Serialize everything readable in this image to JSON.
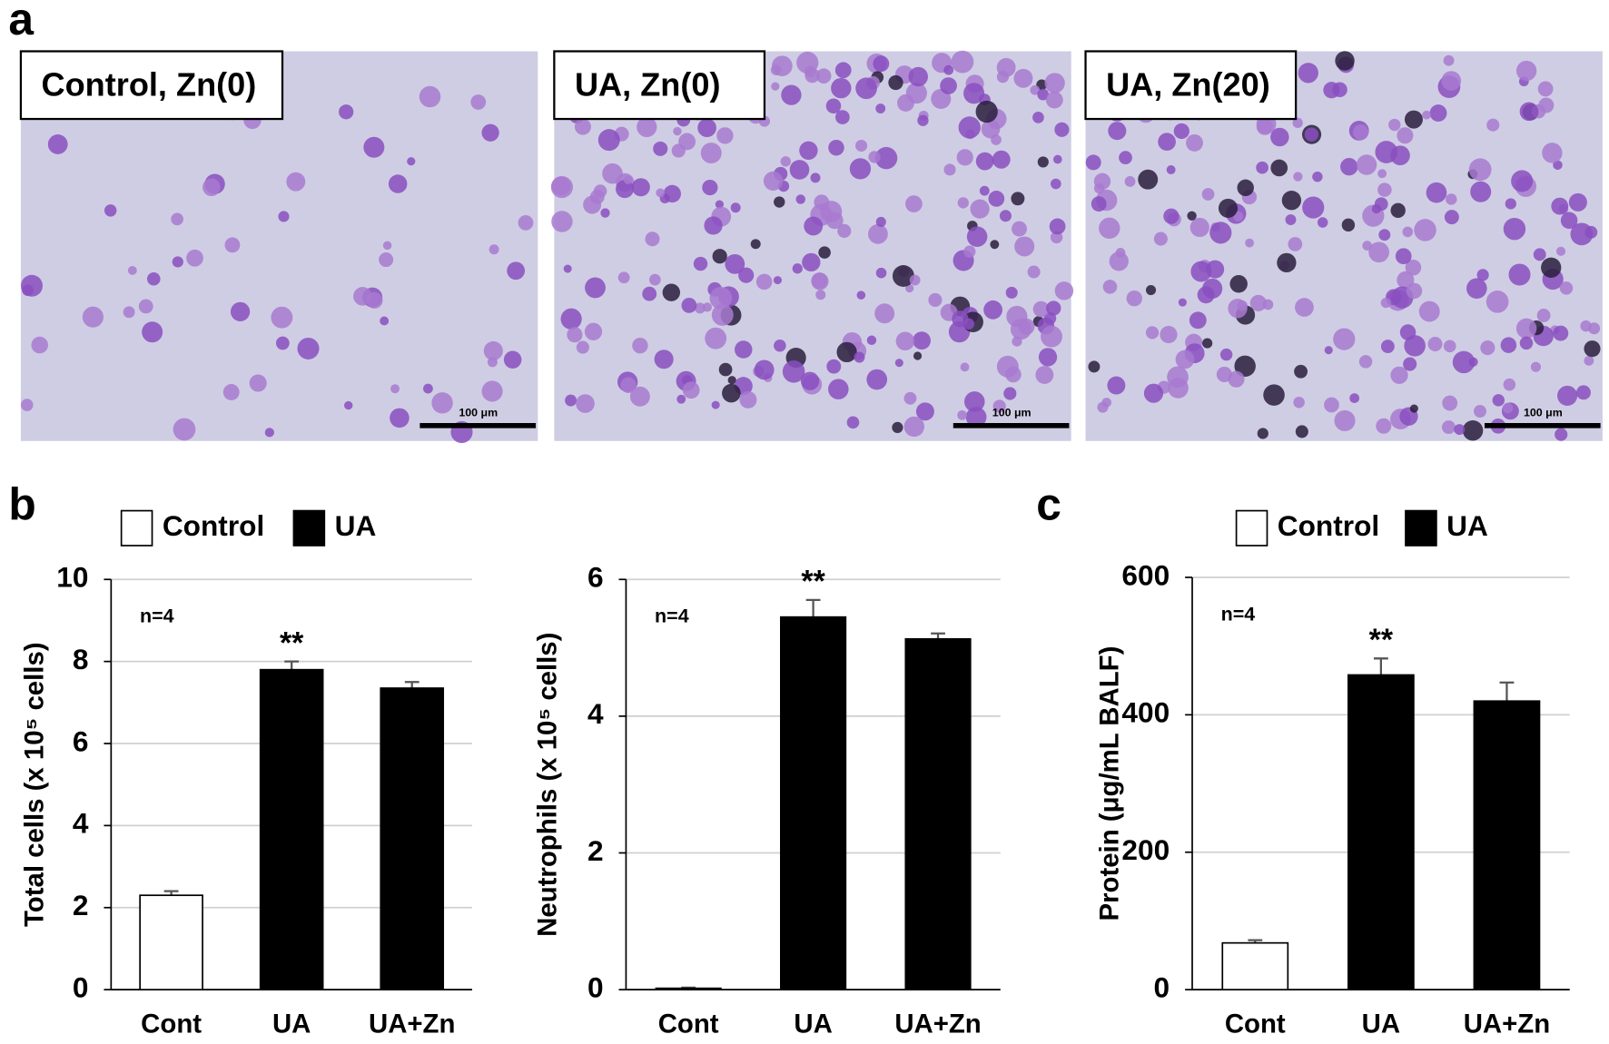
{
  "figure": {
    "panels": [
      "a",
      "b",
      "c"
    ],
    "images": [
      {
        "caption": "Control, Zn(0)",
        "scale": "100 μm"
      },
      {
        "caption": "UA, Zn(0)",
        "scale": "100 μm"
      },
      {
        "caption": "UA, Zn(20)",
        "scale": "100 μm"
      }
    ]
  },
  "chart_data": [
    {
      "type": "bar",
      "ylabel": "Total cells (x 10⁵ cells)",
      "note": "n=4",
      "legend": [
        {
          "name": "Control",
          "color": "#ffffff"
        },
        {
          "name": "UA",
          "color": "#000000"
        }
      ],
      "categories": [
        "Cont",
        "UA",
        "UA+Zn"
      ],
      "values": [
        2.3,
        7.8,
        7.35
      ],
      "errors": [
        0.1,
        0.2,
        0.15
      ],
      "colors": [
        "#ffffff",
        "#000000",
        "#000000"
      ],
      "significance": [
        null,
        "**",
        null
      ],
      "ylim": [
        0,
        10
      ],
      "yticks": [
        0,
        2,
        4,
        6,
        8,
        10
      ],
      "grid": true
    },
    {
      "type": "bar",
      "ylabel": "Neutrophils (x 10⁵ cells)",
      "note": "n=4",
      "categories": [
        "Cont",
        "UA",
        "UA+Zn"
      ],
      "values": [
        0.02,
        5.45,
        5.13
      ],
      "errors": [
        0.01,
        0.25,
        0.08
      ],
      "colors": [
        "#ffffff",
        "#000000",
        "#000000"
      ],
      "significance": [
        null,
        "**",
        null
      ],
      "ylim": [
        0,
        6
      ],
      "yticks": [
        0,
        2,
        4,
        6
      ],
      "grid": true
    },
    {
      "type": "bar",
      "ylabel": "Protein (μg/mL BALF)",
      "note": "n=4",
      "legend": [
        {
          "name": "Control",
          "color": "#ffffff"
        },
        {
          "name": "UA",
          "color": "#000000"
        }
      ],
      "categories": [
        "Cont",
        "UA",
        "UA+Zn"
      ],
      "values": [
        68,
        458,
        420
      ],
      "errors": [
        4,
        24,
        27
      ],
      "colors": [
        "#ffffff",
        "#000000",
        "#000000"
      ],
      "significance": [
        null,
        "**",
        null
      ],
      "ylim": [
        0,
        600
      ],
      "yticks": [
        0,
        200,
        400,
        600
      ],
      "grid": true
    }
  ]
}
